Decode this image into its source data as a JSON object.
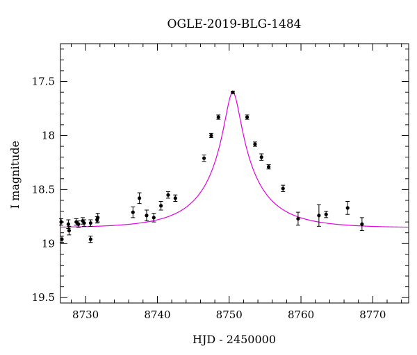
{
  "chart_data": {
    "type": "scatter",
    "title": "OGLE-2019-BLG-1484",
    "xlabel": "HJD - 2450000",
    "ylabel": "I magnitude",
    "xlim": [
      8726.5,
      8775
    ],
    "ylim": [
      19.55,
      17.15
    ],
    "y_inverted": true,
    "xticks": [
      8730,
      8740,
      8750,
      8760,
      8770
    ],
    "yticks": [
      17.5,
      18,
      18.5,
      19,
      19.5
    ],
    "ytick_labels": [
      "17.5",
      "18",
      "18.5",
      "19",
      "19.5"
    ],
    "grid": false,
    "model_color": "#e000e0",
    "model": {
      "t0": 8750.5,
      "u0": 0.13,
      "tE": 8.0,
      "baseline_mag": 18.855,
      "blend_fraction": 0.5,
      "peak_mag": 17.6
    },
    "series": [
      {
        "points": [
          {
            "x": 8726.6,
            "y": 18.8,
            "err": 0.03
          },
          {
            "x": 8726.7,
            "y": 18.96,
            "err": 0.03
          },
          {
            "x": 8727.6,
            "y": 18.82,
            "err": 0.04
          },
          {
            "x": 8727.7,
            "y": 18.88,
            "err": 0.04
          },
          {
            "x": 8728.7,
            "y": 18.8,
            "err": 0.03
          },
          {
            "x": 8729.0,
            "y": 18.82,
            "err": 0.03
          },
          {
            "x": 8729.6,
            "y": 18.79,
            "err": 0.03
          },
          {
            "x": 8729.8,
            "y": 18.81,
            "err": 0.03
          },
          {
            "x": 8730.7,
            "y": 18.81,
            "err": 0.03
          },
          {
            "x": 8730.7,
            "y": 18.96,
            "err": 0.03
          },
          {
            "x": 8731.6,
            "y": 18.78,
            "err": 0.03
          },
          {
            "x": 8731.7,
            "y": 18.76,
            "err": 0.04
          },
          {
            "x": 8736.6,
            "y": 18.71,
            "err": 0.05
          },
          {
            "x": 8737.5,
            "y": 18.58,
            "err": 0.05
          },
          {
            "x": 8738.5,
            "y": 18.74,
            "err": 0.05
          },
          {
            "x": 8739.5,
            "y": 18.76,
            "err": 0.04
          },
          {
            "x": 8740.5,
            "y": 18.65,
            "err": 0.04
          },
          {
            "x": 8741.5,
            "y": 18.55,
            "err": 0.03
          },
          {
            "x": 8742.5,
            "y": 18.58,
            "err": 0.03
          },
          {
            "x": 8746.5,
            "y": 18.21,
            "err": 0.03
          },
          {
            "x": 8747.5,
            "y": 18.0,
            "err": 0.02
          },
          {
            "x": 8748.5,
            "y": 17.83,
            "err": 0.02
          },
          {
            "x": 8750.5,
            "y": 17.6,
            "err": 0.01
          },
          {
            "x": 8752.5,
            "y": 17.83,
            "err": 0.02
          },
          {
            "x": 8753.6,
            "y": 18.08,
            "err": 0.02
          },
          {
            "x": 8754.5,
            "y": 18.2,
            "err": 0.03
          },
          {
            "x": 8755.5,
            "y": 18.29,
            "err": 0.02
          },
          {
            "x": 8757.5,
            "y": 18.49,
            "err": 0.03
          },
          {
            "x": 8759.6,
            "y": 18.77,
            "err": 0.06
          },
          {
            "x": 8762.5,
            "y": 18.74,
            "err": 0.1
          },
          {
            "x": 8763.5,
            "y": 18.73,
            "err": 0.03
          },
          {
            "x": 8766.5,
            "y": 18.67,
            "err": 0.06
          },
          {
            "x": 8768.5,
            "y": 18.82,
            "err": 0.06
          }
        ]
      }
    ]
  }
}
